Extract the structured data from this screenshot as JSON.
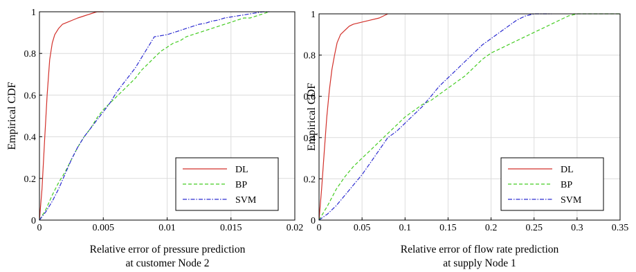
{
  "chart_data": [
    {
      "type": "line",
      "xlabel": [
        "Relative error of pressure prediction",
        "at customer Node 2"
      ],
      "ylabel": "Empirical CDF",
      "xlim": [
        0,
        0.02
      ],
      "ylim": [
        0,
        1
      ],
      "xticks": [
        "0",
        "0.005",
        "0.01",
        "0.015",
        "0.02"
      ],
      "yticks": [
        "0",
        "0.2",
        "0.4",
        "0.6",
        "0.8",
        "1"
      ],
      "grid": true,
      "legend_position": "bottom-right",
      "series": [
        {
          "name": "DL",
          "color": "#d2302a",
          "style": "solid",
          "x": [
            0,
            0.0002,
            0.0004,
            0.0006,
            0.0008,
            0.001,
            0.0012,
            0.0015,
            0.0018,
            0.0022,
            0.0026,
            0.003,
            0.0035,
            0.004,
            0.0045,
            0.005
          ],
          "y": [
            0,
            0.15,
            0.38,
            0.6,
            0.77,
            0.85,
            0.89,
            0.92,
            0.94,
            0.95,
            0.96,
            0.97,
            0.98,
            0.99,
            1.0,
            1.0
          ]
        },
        {
          "name": "BP",
          "color": "#44cc22",
          "style": "dashed",
          "x": [
            0,
            0.0005,
            0.001,
            0.0015,
            0.002,
            0.0025,
            0.003,
            0.0035,
            0.004,
            0.0045,
            0.005,
            0.0055,
            0.006,
            0.0065,
            0.007,
            0.0075,
            0.008,
            0.0085,
            0.009,
            0.0095,
            0.01,
            0.0105,
            0.011,
            0.0115,
            0.012,
            0.0125,
            0.013,
            0.0135,
            0.014,
            0.0145,
            0.015,
            0.0155,
            0.016,
            0.0165,
            0.017,
            0.0175,
            0.018
          ],
          "y": [
            0,
            0.05,
            0.12,
            0.18,
            0.23,
            0.29,
            0.35,
            0.4,
            0.44,
            0.49,
            0.53,
            0.56,
            0.59,
            0.62,
            0.65,
            0.68,
            0.72,
            0.75,
            0.78,
            0.81,
            0.83,
            0.85,
            0.86,
            0.88,
            0.89,
            0.9,
            0.91,
            0.92,
            0.93,
            0.94,
            0.95,
            0.96,
            0.97,
            0.97,
            0.98,
            0.99,
            1.0
          ]
        },
        {
          "name": "SVM",
          "color": "#2a2ad0",
          "style": "dashdot",
          "x": [
            0,
            0.0005,
            0.001,
            0.0015,
            0.002,
            0.0025,
            0.003,
            0.0035,
            0.004,
            0.0045,
            0.005,
            0.0055,
            0.006,
            0.0065,
            0.007,
            0.0075,
            0.008,
            0.0085,
            0.009,
            0.0095,
            0.01,
            0.0105,
            0.011,
            0.0115,
            0.012,
            0.0125,
            0.013,
            0.0135,
            0.014,
            0.0145,
            0.015,
            0.0155,
            0.016,
            0.0165,
            0.017,
            0.0175,
            0.018
          ],
          "y": [
            0,
            0.04,
            0.09,
            0.15,
            0.22,
            0.29,
            0.35,
            0.4,
            0.44,
            0.48,
            0.52,
            0.56,
            0.61,
            0.65,
            0.69,
            0.73,
            0.78,
            0.83,
            0.88,
            0.885,
            0.89,
            0.9,
            0.91,
            0.92,
            0.93,
            0.94,
            0.945,
            0.955,
            0.96,
            0.97,
            0.975,
            0.98,
            0.985,
            0.99,
            0.995,
            1.0,
            1.0
          ]
        }
      ]
    },
    {
      "type": "line",
      "xlabel": [
        "Relative error of flow rate prediction",
        "at supply Node 1"
      ],
      "ylabel": "Empirical CDF",
      "xlim": [
        0,
        0.35
      ],
      "ylim": [
        0,
        1
      ],
      "xticks": [
        "0",
        "0.05",
        "0.1",
        "0.15",
        "0.2",
        "0.25",
        "0.3",
        "0.35"
      ],
      "yticks": [
        "0",
        "0.2",
        "0.4",
        "0.6",
        "0.8",
        "1"
      ],
      "grid": true,
      "legend_position": "bottom-right",
      "series": [
        {
          "name": "DL",
          "color": "#d2302a",
          "style": "solid",
          "x": [
            0,
            0.003,
            0.006,
            0.009,
            0.012,
            0.015,
            0.018,
            0.021,
            0.025,
            0.03,
            0.035,
            0.04,
            0.05,
            0.06,
            0.07,
            0.08
          ],
          "y": [
            0,
            0.15,
            0.33,
            0.5,
            0.63,
            0.73,
            0.8,
            0.86,
            0.9,
            0.92,
            0.94,
            0.95,
            0.96,
            0.97,
            0.98,
            1.0
          ]
        },
        {
          "name": "BP",
          "color": "#44cc22",
          "style": "dashed",
          "x": [
            0,
            0.01,
            0.02,
            0.03,
            0.04,
            0.05,
            0.06,
            0.07,
            0.08,
            0.09,
            0.1,
            0.11,
            0.12,
            0.13,
            0.14,
            0.15,
            0.16,
            0.17,
            0.18,
            0.19,
            0.2,
            0.21,
            0.22,
            0.23,
            0.24,
            0.25,
            0.26,
            0.27,
            0.28,
            0.29,
            0.3,
            0.31,
            0.32,
            0.33,
            0.34,
            0.35
          ],
          "y": [
            0,
            0.07,
            0.15,
            0.21,
            0.26,
            0.3,
            0.34,
            0.38,
            0.42,
            0.46,
            0.5,
            0.53,
            0.56,
            0.58,
            0.61,
            0.64,
            0.67,
            0.7,
            0.74,
            0.78,
            0.81,
            0.83,
            0.85,
            0.87,
            0.89,
            0.91,
            0.93,
            0.95,
            0.97,
            0.99,
            1.0,
            1.0,
            1.0,
            1.0,
            1.0,
            1.0
          ]
        },
        {
          "name": "SVM",
          "color": "#2a2ad0",
          "style": "dashdot",
          "x": [
            0,
            0.01,
            0.02,
            0.03,
            0.04,
            0.05,
            0.06,
            0.07,
            0.08,
            0.09,
            0.1,
            0.11,
            0.12,
            0.13,
            0.14,
            0.15,
            0.16,
            0.17,
            0.18,
            0.19,
            0.2,
            0.21,
            0.22,
            0.23,
            0.24,
            0.25,
            0.26,
            0.27
          ],
          "y": [
            0,
            0.03,
            0.07,
            0.12,
            0.17,
            0.22,
            0.28,
            0.34,
            0.4,
            0.43,
            0.47,
            0.51,
            0.55,
            0.6,
            0.65,
            0.69,
            0.73,
            0.77,
            0.81,
            0.85,
            0.88,
            0.91,
            0.94,
            0.97,
            0.99,
            1.0,
            1.0,
            1.0
          ]
        }
      ]
    }
  ]
}
